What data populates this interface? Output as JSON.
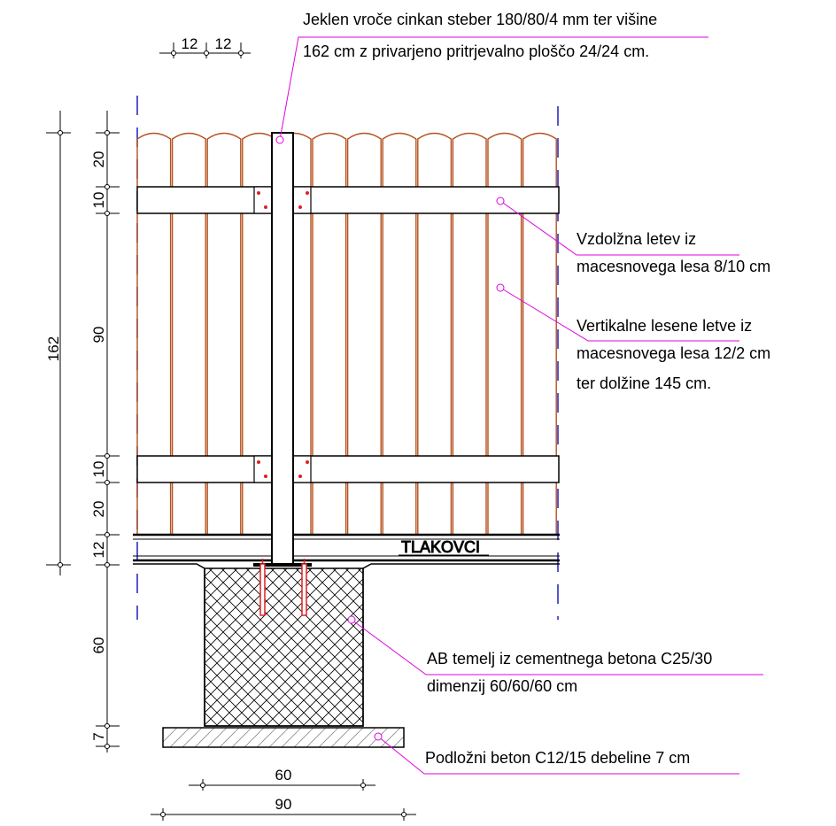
{
  "drawing": {
    "annotations": {
      "steel_post_line1": "Jeklen vroče cinkan steber 180/80/4 mm ter višine",
      "steel_post_line2": "162 cm z privarjeno pritrjevalno ploščo 24/24 cm.",
      "rail_line1": "Vzdolžna letev  iz",
      "rail_line2": "macesnovega lesa  8/10 cm",
      "slats_line1": "Vertikalne lesene letve iz",
      "slats_line2": "macesnovega lesa 12/2 cm",
      "slats_line3": "ter dolžine 145 cm.",
      "foundation_line1": "AB temelj iz cementnega betona C25/30",
      "foundation_line2": "dimenzij 60/60/60 cm",
      "sublayer_line1": "Podložni beton C12/15 debeline 7 cm",
      "pavers": "TLAKOVCI"
    },
    "dimensions": {
      "total_height": "162",
      "top_slat": "20",
      "rail_top": "10",
      "middle": "90",
      "rail_bottom": "10",
      "bottom_slat": "20",
      "pavers_layer": "12",
      "foundation_depth": "60",
      "sublayer": "7",
      "foundation_width": "60",
      "sublayer_width": "90",
      "slat_width_a": "12",
      "slat_width_b": "12"
    },
    "colors": {
      "slat": "#b5501e",
      "leader": "#e000e0",
      "axis": "#1f1fbf",
      "anchor": "#e02020",
      "line": "#000000"
    }
  }
}
